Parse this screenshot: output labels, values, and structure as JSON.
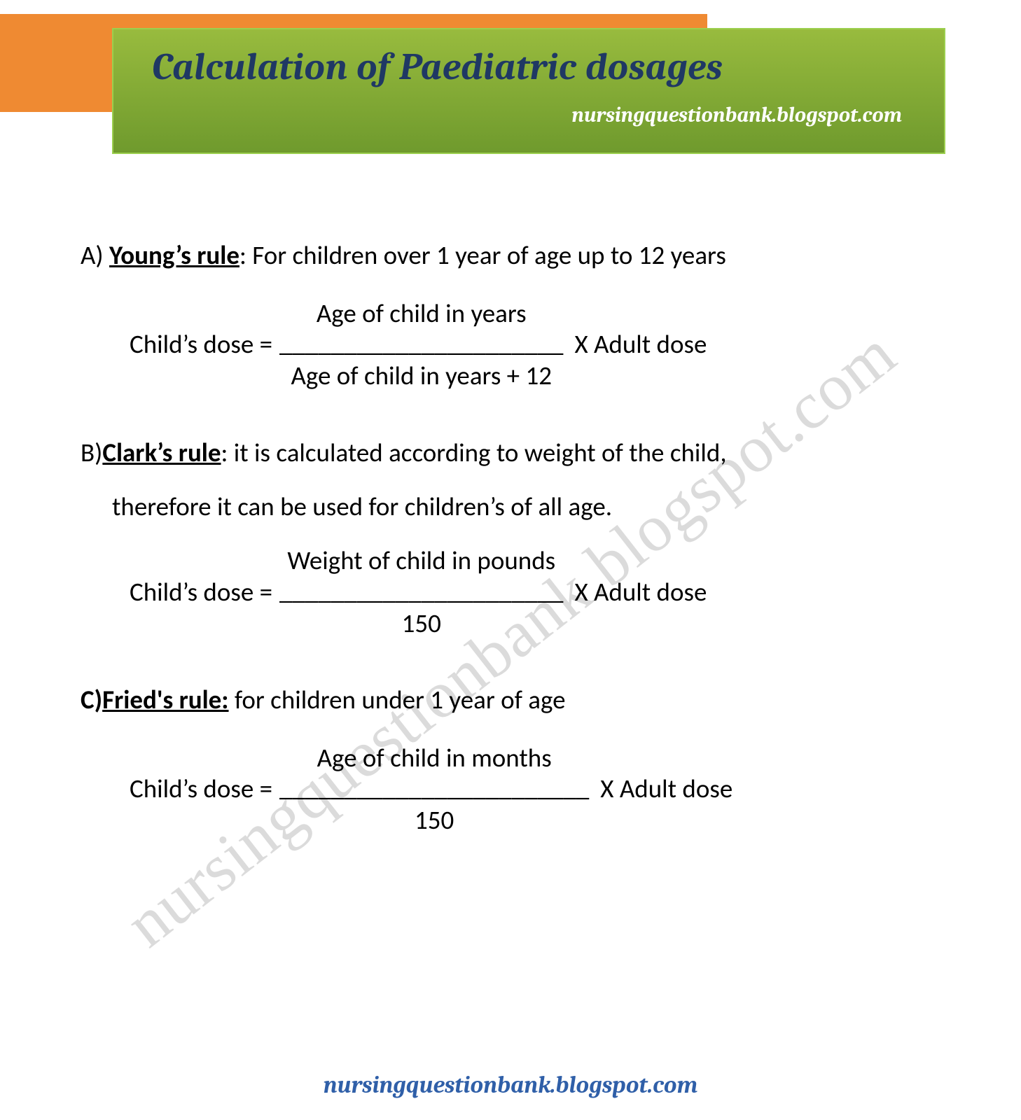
{
  "header": {
    "orange_color": "#ef8a32",
    "panel_gradient_top": "#98bb3e",
    "panel_gradient_bottom": "#6f9a2d",
    "panel_border": "#9ccf4e",
    "title": "Calculation of Paediatric dosages",
    "title_color": "#1f3864",
    "subtitle": "nursingquestionbank.blogspot.com",
    "subtitle_color": "#ffffff"
  },
  "watermark": {
    "text": "nursingquestionbank.blogspot.com",
    "color": "#bfbfbf"
  },
  "rules": {
    "a": {
      "letter": "A) ",
      "name": "Young’s rule",
      "desc": ": For children over 1 year of age up to 12 years",
      "desc_cont": "",
      "formula_lhs": "Child’s dose = ",
      "formula_num": "Age of child in years",
      "formula_line": "______________________",
      "formula_den": "Age of child in years + 12",
      "formula_rhs": " X Adult dose"
    },
    "b": {
      "letter": "B)",
      "name": "Clark’s rule",
      "desc": ": it is calculated according to weight of the child,",
      "desc_cont": "therefore it can be used for children’s of all age.",
      "formula_lhs": "Child’s dose = ",
      "formula_num": "Weight of child in pounds",
      "formula_line": "______________________",
      "formula_den": "150",
      "formula_rhs": " X Adult dose"
    },
    "c": {
      "letter": "C)",
      "name": "Fried's rule:",
      "desc": " for children under 1 year of age",
      "desc_cont": "",
      "formula_lhs": "Child’s dose = ",
      "formula_num": "Age of child in months",
      "formula_line": "________________________",
      "formula_den": "150",
      "formula_rhs": " X Adult dose"
    }
  },
  "footer": {
    "text": "nursingquestionbank.blogspot.com",
    "color": "#2f5fa8"
  }
}
